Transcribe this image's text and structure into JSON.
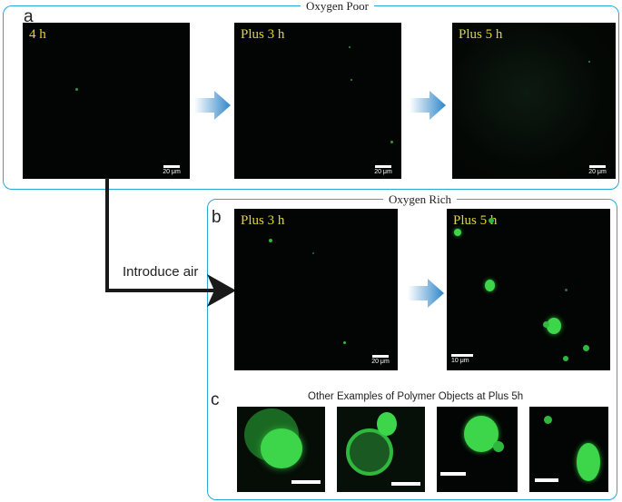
{
  "figure": {
    "panel_a_letter": "a",
    "panel_b_letter": "b",
    "panel_c_letter": "c",
    "oxygen_poor_title": "Oxygen Poor",
    "oxygen_rich_title": "Oxygen Rich",
    "introduce_air_label": "Introduce air",
    "other_examples_title": "Other Examples of Polymer Objects at Plus 5h"
  },
  "panels": {
    "a1": {
      "label": "4 h",
      "scale": "20 μm"
    },
    "a2": {
      "label": "Plus 3 h",
      "scale": "20 μm"
    },
    "a3": {
      "label": "Plus 5 h",
      "scale": "20 μm"
    },
    "b1": {
      "label": "Plus 3 h",
      "scale": "20 μm"
    },
    "b2": {
      "label": "Plus 5 h",
      "scale": "10 μm"
    }
  },
  "colors": {
    "frame": "#2aa7d6",
    "label": "#e4d62a",
    "arrow_blue": "#2f86c9",
    "fluorescence": "#3dd64a"
  }
}
